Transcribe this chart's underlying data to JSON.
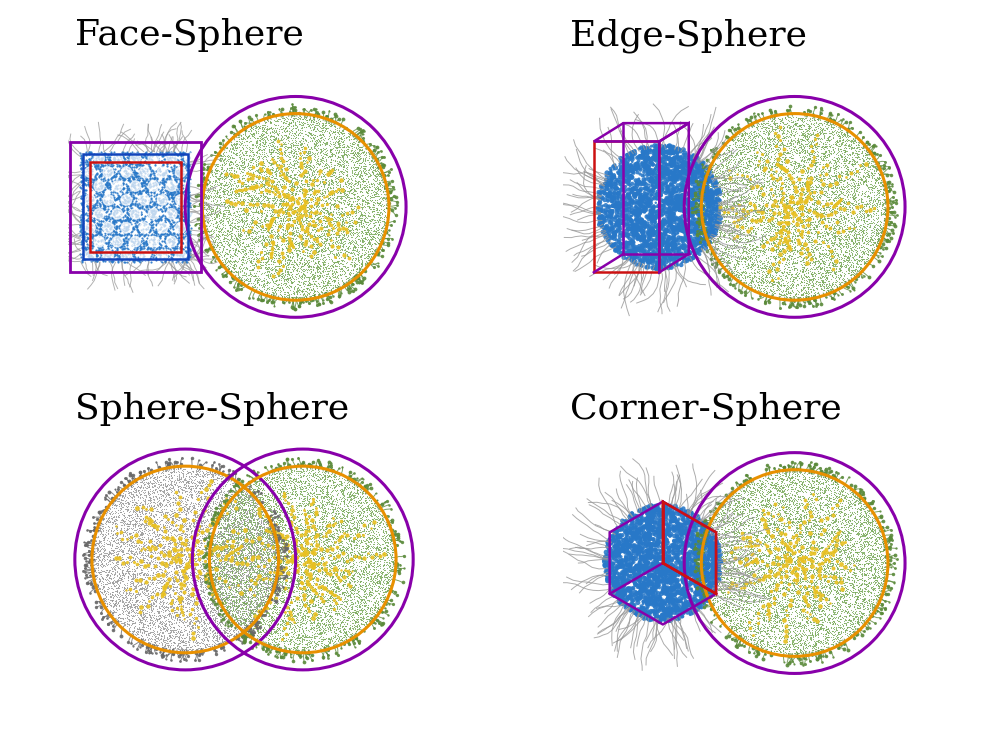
{
  "panels": [
    {
      "title": "Face-Sphere",
      "row": 0,
      "col": 0,
      "type": "face"
    },
    {
      "title": "Edge-Sphere",
      "row": 0,
      "col": 1,
      "type": "edge"
    },
    {
      "title": "Sphere-Sphere",
      "row": 1,
      "col": 0,
      "type": "sphere"
    },
    {
      "title": "Corner-Sphere",
      "row": 1,
      "col": 1,
      "type": "corner"
    }
  ],
  "colors": {
    "green_body": "#7aaa5a",
    "green_shell": "#5a8a3a",
    "yellow_core": "#e8c020",
    "gray_body": "#989898",
    "gray_shell": "#686868",
    "blue_body": "#2878c8",
    "blue_light": "#50a0e0",
    "purple": "#8800aa",
    "orange": "#e89000",
    "red": "#cc1111",
    "blue_box": "#1144bb",
    "white": "#ffffff"
  },
  "title_fontsize": 26,
  "dpi": 100
}
